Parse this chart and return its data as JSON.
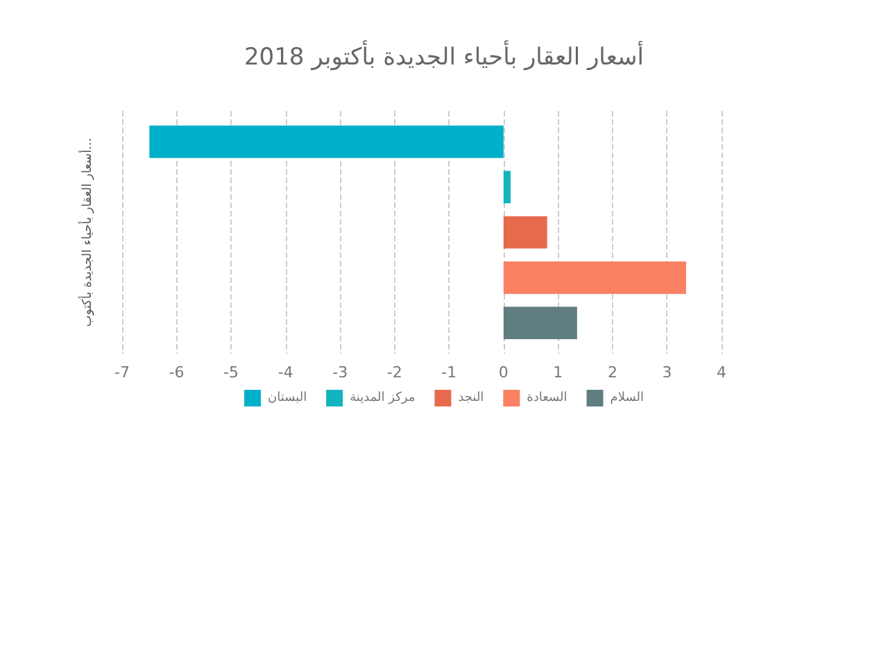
{
  "chart_data": {
    "type": "bar",
    "orientation": "horizontal",
    "title": "أسعار العقار بأحياء الجديدة بأكتوبر 2018",
    "ylabel": "أسعار العقار بأحياء الجديدة بأكتوب...",
    "categories": [
      null
    ],
    "series": [
      {
        "name": "البستان",
        "color": "#00b0ca",
        "values": [
          -6.5
        ]
      },
      {
        "name": "مركز المدينة",
        "color": "#12b5bd",
        "values": [
          0.13
        ]
      },
      {
        "name": "النجد",
        "color": "#e76a4d",
        "values": [
          0.8
        ]
      },
      {
        "name": "السعادة",
        "color": "#fa8164",
        "values": [
          3.35
        ]
      },
      {
        "name": "السلام",
        "color": "#607d80",
        "values": [
          1.35
        ]
      }
    ],
    "xlim": [
      -7,
      4
    ],
    "xticks": [
      -7,
      -6,
      -5,
      -4,
      -3,
      -2,
      -1,
      0,
      1,
      2,
      3,
      4
    ],
    "grid": "x",
    "legend": "bottom"
  }
}
